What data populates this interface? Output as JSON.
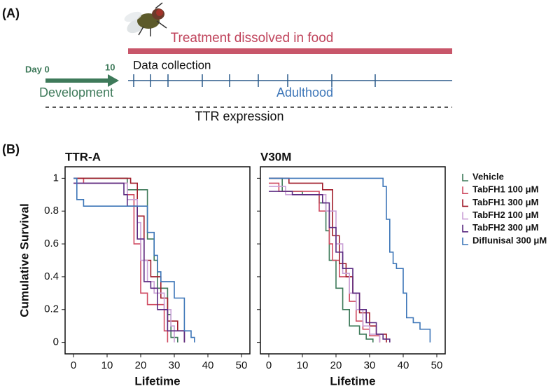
{
  "panel_a": {
    "label": "(A)",
    "treatment": "Treatment dissolved in food",
    "day0": "Day 0",
    "day10": "10",
    "data_collection": "Data collection",
    "development": "Development",
    "adulthood": "Adulthood",
    "expression": "TTR expression"
  },
  "panel_b": {
    "label": "(B)"
  },
  "chart_data": [
    {
      "type": "step",
      "title": "TTR-A",
      "xlabel": "Lifetime",
      "ylabel": "Cumulative Survival",
      "xlim": [
        -2.5,
        52.5
      ],
      "ylim": [
        -0.07,
        1.07
      ],
      "xticks": [
        0,
        10,
        20,
        30,
        40,
        50
      ],
      "yticks": [
        0,
        0.2,
        0.4,
        0.6,
        0.8,
        1
      ],
      "show_ytick_labels": true,
      "series": [
        {
          "color": "#3e7a5a",
          "x": [
            0,
            16,
            22,
            24,
            25,
            28,
            29,
            31
          ],
          "values": [
            1,
            0.93,
            0.63,
            0.5,
            0.33,
            0.17,
            0.03,
            0
          ]
        },
        {
          "color": "#cf4a60",
          "x": [
            0,
            3,
            16,
            18,
            20,
            22,
            27,
            28
          ],
          "values": [
            1,
            0.97,
            0.9,
            0.6,
            0.3,
            0.23,
            0.07,
            0
          ]
        },
        {
          "color": "#a01c2a",
          "x": [
            0,
            17,
            19,
            21,
            23,
            26,
            28,
            31,
            33
          ],
          "values": [
            1,
            0.97,
            0.77,
            0.5,
            0.4,
            0.27,
            0.13,
            0.07,
            0
          ]
        },
        {
          "color": "#c9a0d6",
          "x": [
            0,
            16,
            19,
            20,
            22,
            24,
            27,
            29,
            30
          ],
          "values": [
            0.97,
            0.87,
            0.73,
            0.5,
            0.37,
            0.3,
            0.2,
            0.1,
            0
          ]
        },
        {
          "color": "#5a2a80",
          "x": [
            0,
            15,
            16,
            19,
            21,
            23,
            25,
            28,
            33
          ],
          "values": [
            0.97,
            0.9,
            0.83,
            0.63,
            0.37,
            0.33,
            0.2,
            0.07,
            0
          ]
        },
        {
          "color": "#3d76b8",
          "x": [
            0,
            1,
            3,
            16,
            22,
            24,
            25,
            26,
            30,
            33,
            35,
            36
          ],
          "values": [
            1,
            0.87,
            0.83,
            0.83,
            0.67,
            0.53,
            0.43,
            0.37,
            0.27,
            0.07,
            0.03,
            0
          ]
        }
      ]
    },
    {
      "type": "step",
      "title": "V30M",
      "xlabel": "Lifetime",
      "xlim": [
        -2.5,
        52.5
      ],
      "ylim": [
        -0.07,
        1.07
      ],
      "xticks": [
        0,
        10,
        20,
        30,
        40,
        50
      ],
      "yticks": [
        0,
        0.2,
        0.4,
        0.6,
        0.8,
        1
      ],
      "show_ytick_labels": false,
      "legend": "right",
      "series": [
        {
          "name": "Vehicle",
          "color": "#3e7a5a",
          "x": [
            0,
            4,
            10,
            15,
            17,
            18,
            20,
            22,
            24,
            27,
            29,
            31
          ],
          "values": [
            1,
            0.92,
            0.9,
            0.85,
            0.68,
            0.5,
            0.33,
            0.2,
            0.1,
            0.05,
            0.02,
            0
          ]
        },
        {
          "name": "TabFH1 100 μM",
          "color": "#cf4a60",
          "x": [
            0,
            3,
            15,
            18,
            19,
            21,
            24,
            26,
            28,
            30,
            33
          ],
          "values": [
            0.97,
            0.92,
            0.8,
            0.6,
            0.5,
            0.4,
            0.25,
            0.13,
            0.08,
            0.04,
            0
          ]
        },
        {
          "name": "TabFH1 300 μM",
          "color": "#a01c2a",
          "x": [
            0,
            6,
            16,
            19,
            21,
            23,
            25,
            27,
            30,
            32,
            35
          ],
          "values": [
            1,
            0.97,
            0.93,
            0.65,
            0.48,
            0.4,
            0.3,
            0.18,
            0.1,
            0.05,
            0
          ]
        },
        {
          "name": "TabFH2 100 μM",
          "color": "#c9a0d6",
          "x": [
            0,
            5,
            17,
            20,
            22,
            24,
            26,
            28,
            30,
            33
          ],
          "values": [
            0.95,
            0.9,
            0.8,
            0.6,
            0.42,
            0.3,
            0.2,
            0.1,
            0.05,
            0
          ]
        },
        {
          "name": "TabFH2 300 μM",
          "color": "#5a2a80",
          "x": [
            0,
            7,
            16,
            18,
            20,
            22,
            25,
            27,
            29,
            32,
            34,
            36
          ],
          "values": [
            0.92,
            0.9,
            0.85,
            0.7,
            0.55,
            0.45,
            0.3,
            0.2,
            0.12,
            0.05,
            0.02,
            0
          ]
        },
        {
          "name": "Diflunisal 300 μM",
          "color": "#3d76b8",
          "x": [
            0,
            34,
            35,
            36,
            37,
            38,
            40,
            41,
            43,
            45,
            48
          ],
          "values": [
            1,
            0.95,
            0.75,
            0.55,
            0.48,
            0.45,
            0.3,
            0.15,
            0.12,
            0.08,
            0
          ]
        }
      ]
    }
  ]
}
